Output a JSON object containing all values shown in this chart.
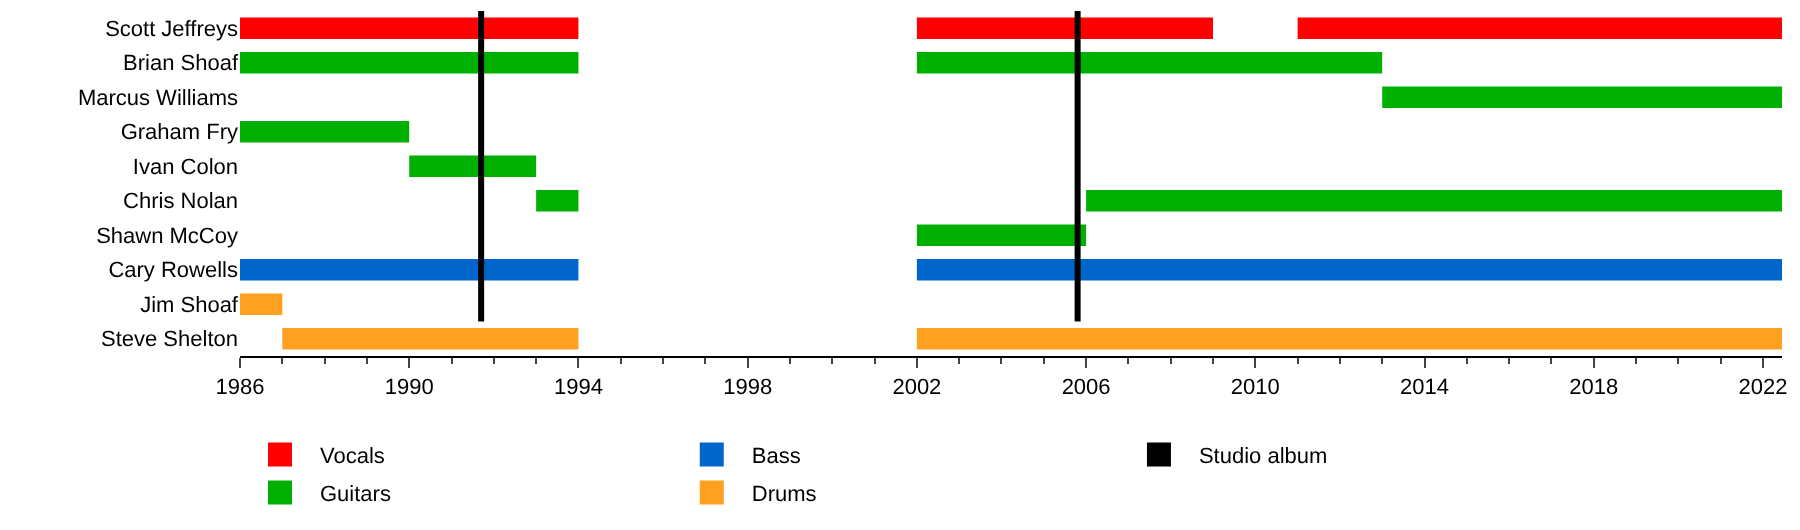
{
  "chart_data": {
    "type": "bar",
    "orientation": "horizontal",
    "categories": [
      "Scott Jeffreys",
      "Brian Shoaf",
      "Marcus Williams",
      "Graham Fry",
      "Ivan Colon",
      "Chris Nolan",
      "Shawn McCoy",
      "Cary Rowells",
      "Jim Shoaf",
      "Steve Shelton"
    ],
    "series": [
      {
        "name": "Vocals",
        "color": "#ff0000",
        "base": [
          1986,
          null,
          null,
          null,
          null,
          null,
          null,
          null,
          null,
          null
        ],
        "values": [
          8,
          null,
          null,
          null,
          null,
          null,
          null,
          null,
          null,
          null
        ]
      },
      {
        "color": "#ff0000",
        "base": [
          2002,
          null,
          null,
          null,
          null,
          null,
          null,
          null,
          null,
          null
        ],
        "values": [
          7,
          null,
          null,
          null,
          null,
          null,
          null,
          null,
          null,
          null
        ]
      },
      {
        "color": "#ff0000",
        "base": [
          2011,
          null,
          null,
          null,
          null,
          null,
          null,
          null,
          null,
          null
        ],
        "values": [
          11.45,
          null,
          null,
          null,
          null,
          null,
          null,
          null,
          null,
          null
        ]
      },
      {
        "name": "Guitars",
        "color": "#00b000",
        "base": [
          null,
          1986,
          2013,
          1986,
          1990,
          1993,
          2002,
          null,
          null,
          null
        ],
        "values": [
          null,
          8,
          9.45,
          4,
          3,
          1,
          4,
          null,
          null,
          null
        ]
      },
      {
        "color": "#00b000",
        "base": [
          null,
          2002,
          null,
          null,
          null,
          2006,
          null,
          null,
          null,
          null
        ],
        "values": [
          null,
          11,
          null,
          null,
          null,
          16.45,
          null,
          null,
          null,
          null
        ]
      },
      {
        "name": "Bass",
        "color": "#0066cc",
        "base": [
          null,
          null,
          null,
          null,
          null,
          null,
          null,
          1986,
          null,
          null
        ],
        "values": [
          null,
          null,
          null,
          null,
          null,
          null,
          null,
          8,
          null,
          null
        ]
      },
      {
        "color": "#0066cc",
        "base": [
          null,
          null,
          null,
          null,
          null,
          null,
          null,
          2002,
          null,
          null
        ],
        "values": [
          null,
          null,
          null,
          null,
          null,
          null,
          null,
          20.45,
          null,
          null
        ]
      },
      {
        "name": "Drums",
        "color": "#ffa020",
        "base": [
          null,
          null,
          null,
          null,
          null,
          null,
          null,
          null,
          1986,
          1987
        ],
        "values": [
          null,
          null,
          null,
          null,
          null,
          null,
          null,
          null,
          1,
          7
        ]
      },
      {
        "color": "#ffa020",
        "base": [
          null,
          null,
          null,
          null,
          null,
          null,
          null,
          null,
          null,
          2002
        ],
        "values": [
          null,
          null,
          null,
          null,
          null,
          null,
          null,
          null,
          null,
          20.45
        ]
      }
    ],
    "ref_lines": [
      {
        "axis": "x",
        "value": 1991.7,
        "label": "Studio album",
        "color": "#000000"
      },
      {
        "axis": "x",
        "value": 2005.8,
        "color": "#000000"
      }
    ],
    "xlim": [
      1986,
      2022.45
    ],
    "xticks": [
      1986,
      1990,
      1994,
      1998,
      2002,
      2006,
      2010,
      2014,
      2018,
      2022
    ],
    "legend": "bottom"
  }
}
